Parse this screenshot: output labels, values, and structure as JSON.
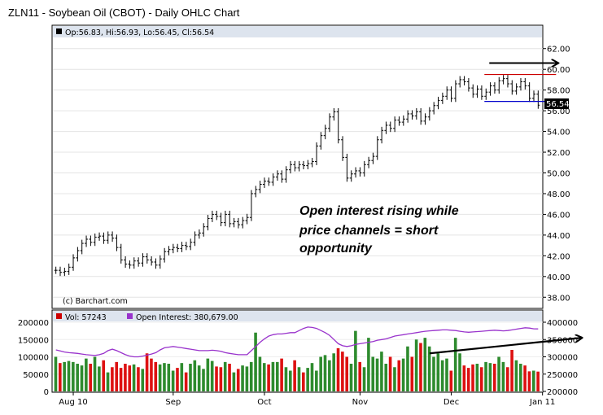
{
  "chart_data": {
    "type": "ohlc",
    "title": "ZLN11 - Soybean Oil (CBOT) - Daily OHLC Chart",
    "ohlc_readout": "Op:56.83, Hi:56.93, Lo:56.45, Cl:56.54",
    "last_price_label": "56.54",
    "last_close": 56.54,
    "watermark": "(c) Barchart.com",
    "price_axis": {
      "ylim": [
        37,
        63
      ],
      "ticks": [
        "38.00",
        "40.00",
        "42.00",
        "44.00",
        "46.00",
        "48.00",
        "50.00",
        "52.00",
        "54.00",
        "56.00",
        "58.00",
        "60.00",
        "62.00"
      ]
    },
    "x_labels": [
      {
        "label": "Aug 10",
        "index": 4
      },
      {
        "label": "Sep",
        "index": 27
      },
      {
        "label": "Oct",
        "index": 48
      },
      {
        "label": "Nov",
        "index": 70
      },
      {
        "label": "Dec",
        "index": 91
      },
      {
        "label": "Jan 11",
        "index": 112
      }
    ],
    "closes": [
      40.6,
      40.4,
      40.5,
      40.9,
      41.8,
      42.5,
      43.2,
      43.6,
      43.3,
      43.8,
      43.9,
      43.5,
      44.0,
      43.7,
      42.8,
      41.6,
      41.2,
      41.1,
      41.5,
      41.3,
      41.9,
      41.6,
      41.4,
      41.1,
      41.7,
      42.4,
      42.6,
      42.8,
      42.7,
      43.0,
      42.9,
      43.3,
      44.0,
      44.2,
      44.8,
      45.6,
      46.0,
      45.8,
      45.2,
      46.0,
      45.1,
      45.3,
      45.0,
      45.4,
      45.7,
      48.0,
      48.4,
      48.9,
      49.2,
      49.1,
      49.6,
      49.9,
      49.4,
      50.3,
      50.8,
      50.5,
      50.8,
      50.7,
      50.9,
      51.1,
      52.6,
      53.6,
      54.3,
      55.4,
      55.9,
      53.2,
      51.5,
      49.5,
      49.9,
      50.2,
      50.0,
      50.8,
      51.2,
      51.6,
      53.2,
      54.1,
      54.6,
      54.3,
      55.1,
      54.9,
      55.2,
      55.7,
      55.5,
      55.9,
      55.0,
      55.4,
      56.0,
      56.5,
      57.0,
      57.4,
      58.0,
      57.2,
      58.6,
      59.0,
      58.8,
      58.2,
      57.6,
      58.1,
      57.4,
      57.8,
      58.4,
      58.0,
      58.9,
      59.1,
      58.6,
      57.9,
      58.3,
      58.8,
      58.4,
      57.2,
      57.6,
      56.54
    ],
    "price_annotations": {
      "resistance": 59.5,
      "support": 56.9,
      "arrow_level": 60.6,
      "text_lines": [
        "Open interest rising while",
        "price channels = short",
        "opportunity"
      ]
    },
    "lower_panel": {
      "legend": [
        {
          "label": "Vol: 57243",
          "color": "#cc0000"
        },
        {
          "label": "Open Interest: 380,679.00",
          "color": "#9933cc"
        }
      ],
      "volume_axis": {
        "ylim": [
          0,
          200000
        ],
        "ticks": [
          "0",
          "50000",
          "100000",
          "150000",
          "200000"
        ]
      },
      "oi_axis": {
        "ylim": [
          200000,
          400000
        ],
        "ticks": [
          "200000",
          "250000",
          "300000",
          "350000",
          "400000"
        ]
      },
      "volume": [
        100000,
        82000,
        85000,
        88000,
        85000,
        80000,
        75000,
        95000,
        80000,
        100000,
        72000,
        90000,
        55000,
        70000,
        85000,
        68000,
        80000,
        75000,
        78000,
        70000,
        65000,
        110000,
        95000,
        85000,
        78000,
        82000,
        80000,
        60000,
        68000,
        82000,
        55000,
        80000,
        90000,
        75000,
        65000,
        95000,
        88000,
        72000,
        70000,
        85000,
        80000,
        55000,
        65000,
        75000,
        72000,
        85000,
        170000,
        100000,
        82000,
        78000,
        85000,
        85000,
        95000,
        70000,
        60000,
        90000,
        70000,
        55000,
        68000,
        82000,
        60000,
        100000,
        105000,
        90000,
        110000,
        125000,
        115000,
        100000,
        80000,
        175000,
        85000,
        70000,
        155000,
        100000,
        95000,
        115000,
        80000,
        100000,
        70000,
        90000,
        95000,
        130000,
        100000,
        150000,
        140000,
        155000,
        130000,
        100000,
        110000,
        90000,
        95000,
        60000,
        155000,
        110000,
        75000,
        68000,
        78000,
        80000,
        70000,
        85000,
        82000,
        80000,
        100000,
        85000,
        70000,
        120000,
        90000,
        80000,
        75000,
        58000,
        60000,
        57243
      ],
      "open_interest": [
        320000,
        317000,
        314000,
        312000,
        311000,
        310000,
        308000,
        306000,
        305000,
        304000,
        306000,
        310000,
        318000,
        322000,
        318000,
        312000,
        306000,
        302000,
        300000,
        300000,
        302000,
        305000,
        308000,
        312000,
        320000,
        326000,
        328000,
        330000,
        328000,
        326000,
        324000,
        322000,
        320000,
        318000,
        318000,
        318000,
        319000,
        318000,
        316000,
        312000,
        310000,
        308000,
        306000,
        306000,
        306000,
        318000,
        330000,
        342000,
        352000,
        360000,
        364000,
        366000,
        366000,
        368000,
        370000,
        370000,
        376000,
        382000,
        386000,
        385000,
        382000,
        376000,
        370000,
        362000,
        350000,
        338000,
        332000,
        330000,
        332000,
        336000,
        338000,
        340000,
        342000,
        344000,
        348000,
        350000,
        352000,
        356000,
        360000,
        362000,
        364000,
        366000,
        368000,
        370000,
        372000,
        374000,
        375000,
        376000,
        377000,
        378000,
        378000,
        377000,
        376000,
        374000,
        372000,
        371000,
        372000,
        373000,
        374000,
        375000,
        376000,
        377000,
        376000,
        375000,
        376000,
        378000,
        380000,
        382000,
        384000,
        383000,
        381000,
        380679
      ]
    },
    "oi_trend_arrow": {
      "from": {
        "index": 86,
        "oi": 310000
      },
      "to": {
        "index": 121,
        "oi": 355000
      }
    }
  }
}
